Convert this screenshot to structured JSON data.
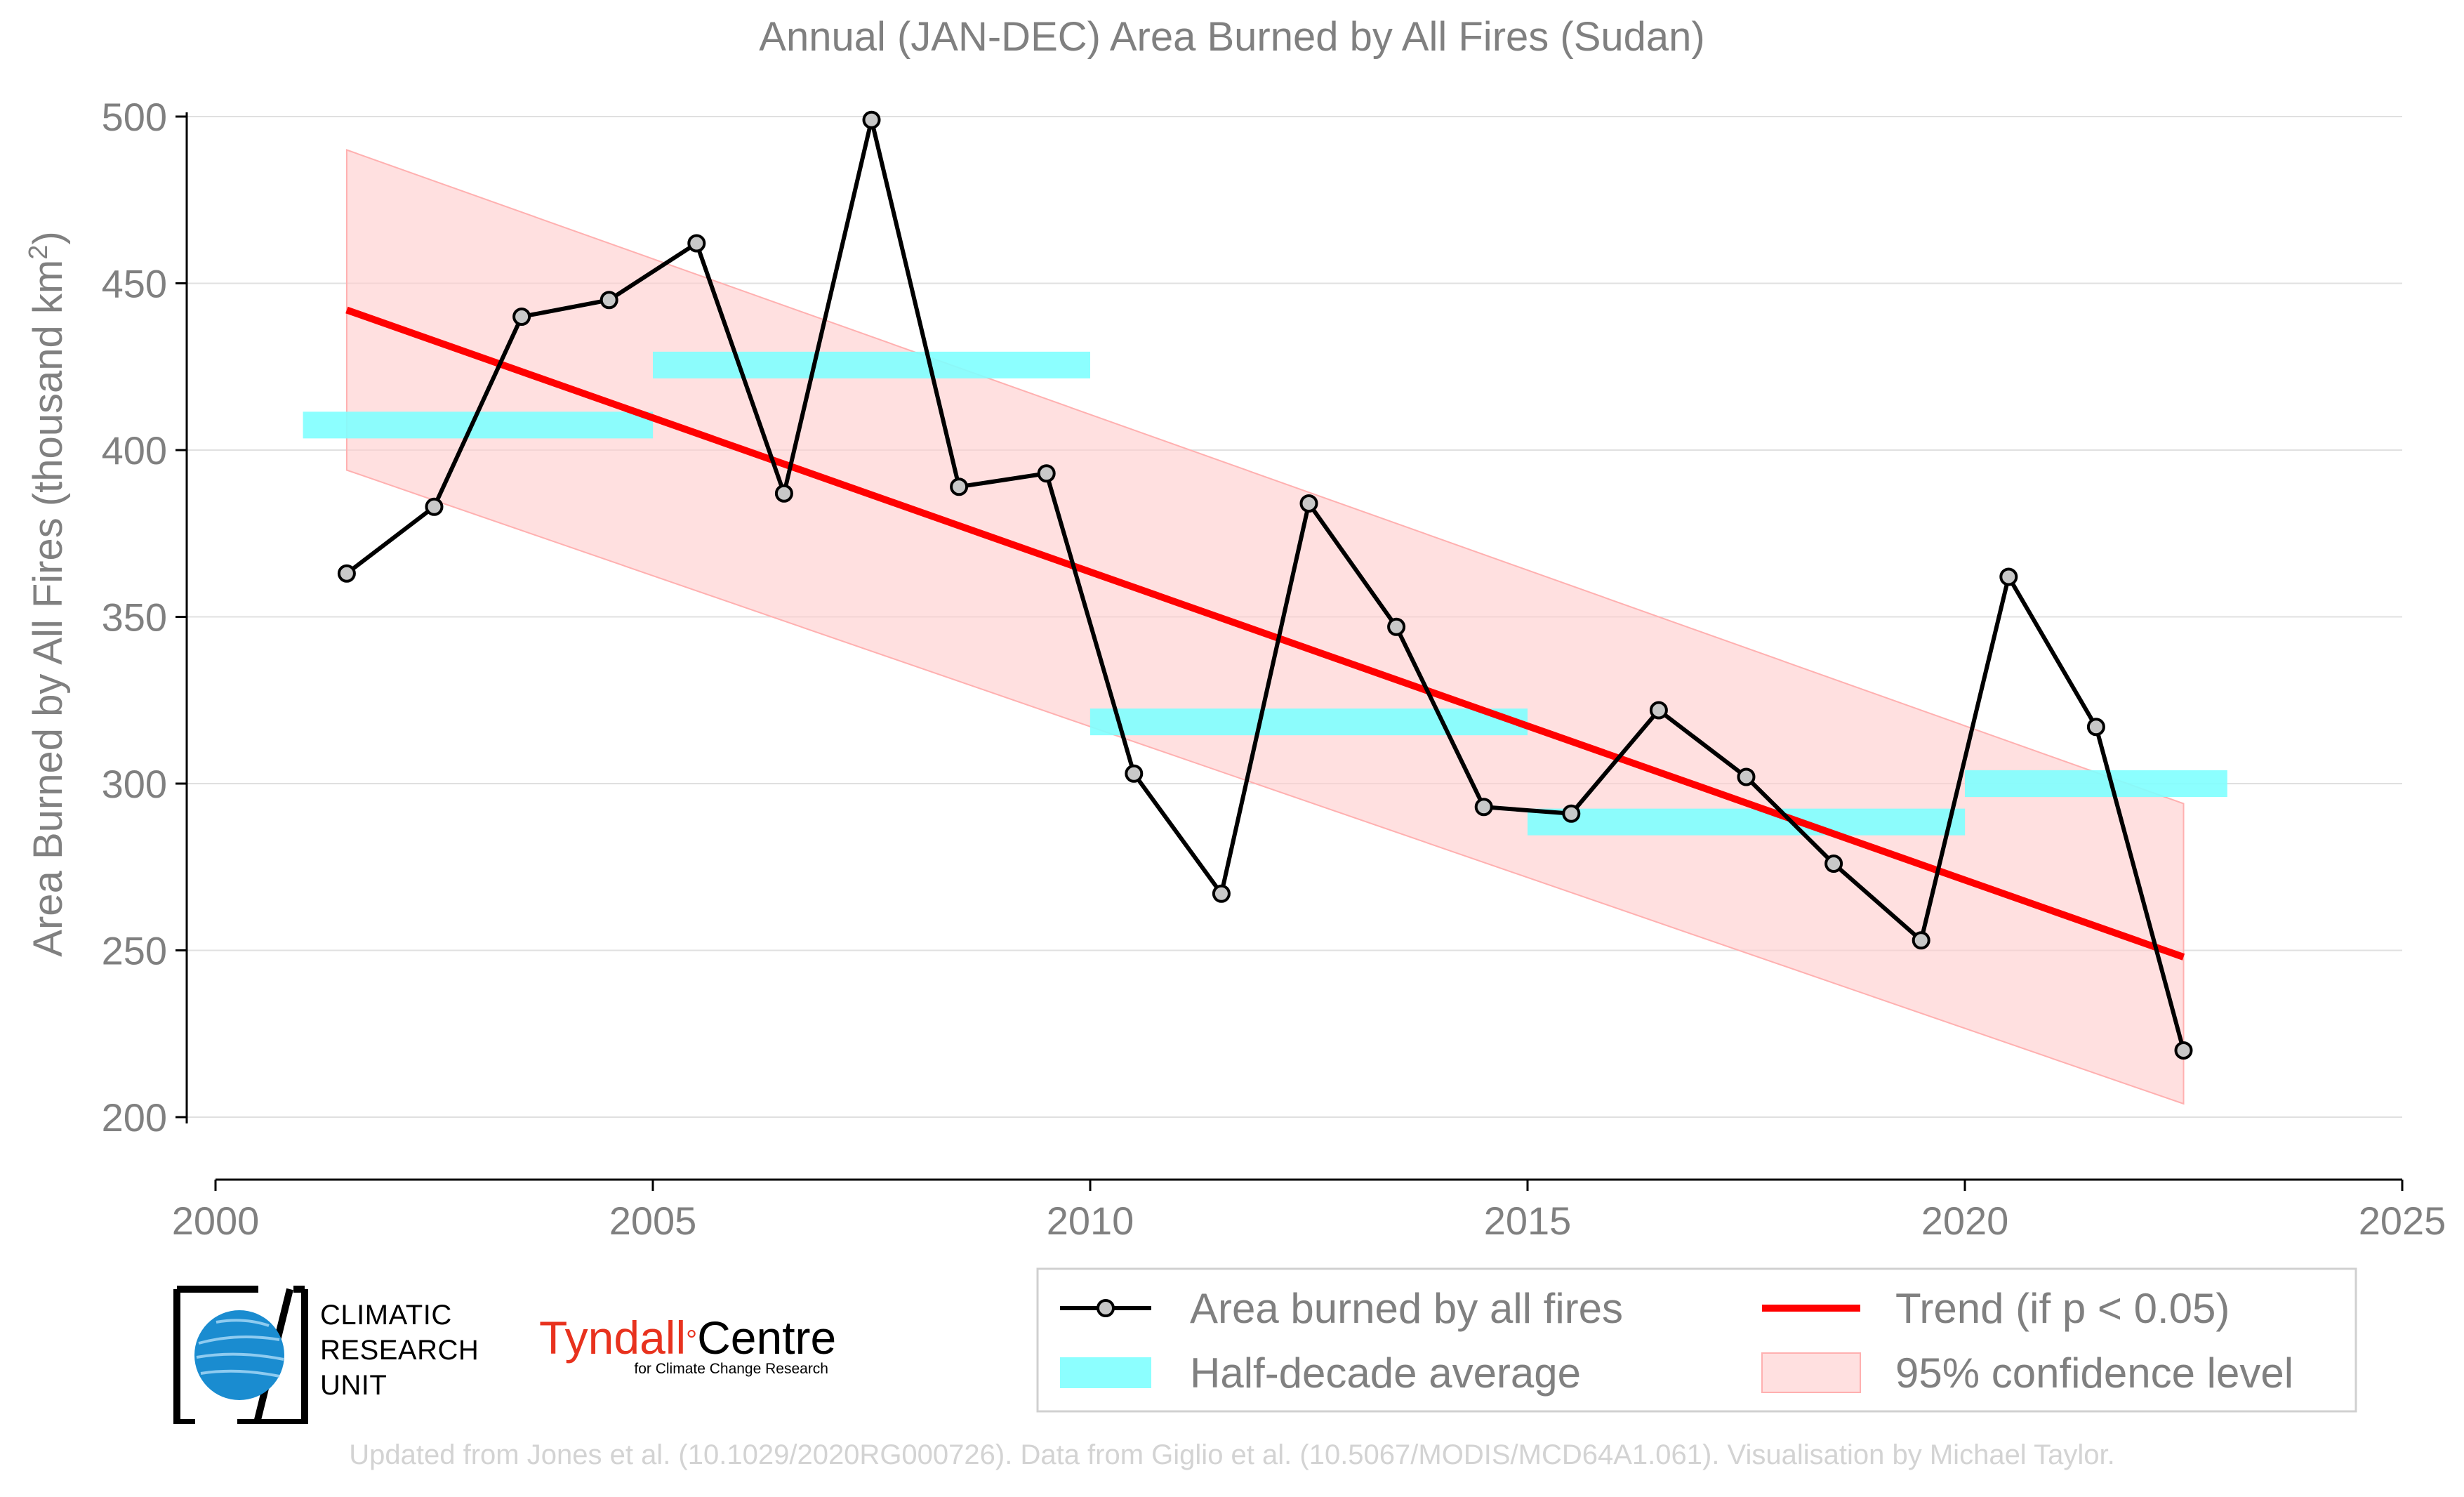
{
  "chart_data": {
    "type": "line",
    "title": "Annual (JAN-DEC) Area Burned by All Fires (Sudan)",
    "ylabel": "Area Burned by All Fires (thousand km",
    "ylabel_sup": "2",
    "ylabel_end": ")",
    "xlim": [
      2000,
      2025
    ],
    "ylim": [
      185,
      500
    ],
    "x_ticks": [
      2000,
      2005,
      2010,
      2015,
      2020,
      2025
    ],
    "y_ticks": [
      200,
      250,
      300,
      350,
      400,
      450,
      500
    ],
    "grid": true,
    "legend_position": "bottom-right",
    "colors": {
      "line": "#000000",
      "marker_fill": "#c8c8c8",
      "trend": "#ff0000",
      "half_decade": "#7fffff",
      "confidence": "#ffcccc",
      "grid": "#e0e0e0",
      "axis_text": "#808080"
    },
    "series": [
      {
        "name": "Area burned by all fires",
        "x": [
          2001.5,
          2002.5,
          2003.5,
          2004.5,
          2005.5,
          2006.5,
          2007.5,
          2008.5,
          2009.5,
          2010.5,
          2011.5,
          2012.5,
          2013.5,
          2014.5,
          2015.5,
          2016.5,
          2017.5,
          2018.5,
          2019.5,
          2020.5,
          2021.5,
          2022.5
        ],
        "values": [
          363,
          383,
          440,
          445,
          462,
          387,
          499,
          389,
          393,
          303,
          267,
          384,
          347,
          293,
          291,
          322,
          302,
          276,
          253,
          362,
          317,
          220
        ]
      }
    ],
    "half_decade_average": {
      "name": "Half-decade average",
      "segments": [
        {
          "x0": 2001,
          "x1": 2005,
          "value": 407.5
        },
        {
          "x0": 2005,
          "x1": 2010,
          "value": 425.5
        },
        {
          "x0": 2010,
          "x1": 2015,
          "value": 318.5
        },
        {
          "x0": 2015,
          "x1": 2020,
          "value": 288.5
        },
        {
          "x0": 2020,
          "x1": 2023,
          "value": 300
        }
      ]
    },
    "trend": {
      "name": "Trend (if p < 0.05)",
      "x0": 2001.5,
      "y0": 442,
      "x1": 2022.5,
      "y1": 248
    },
    "confidence": {
      "name": "95% confidence level",
      "x": [
        2001.5,
        2022.5
      ],
      "upper": [
        490,
        294
      ],
      "lower": [
        394,
        204
      ]
    },
    "legend": [
      {
        "label": "Area burned by all fires",
        "kind": "line-marker"
      },
      {
        "label": "Trend (if p < 0.05)",
        "kind": "trend"
      },
      {
        "label": "Half-decade average",
        "kind": "band"
      },
      {
        "label": "95% confidence level",
        "kind": "fill"
      }
    ]
  },
  "logos": {
    "cru_line1": "CLIMATIC",
    "cru_line2": "RESEARCH",
    "cru_line3": "UNIT",
    "tyndall_name": "Tyndall",
    "tyndall_degree": "°",
    "tyndall_centre": "Centre",
    "tyndall_sub": "for Climate Change Research"
  },
  "footer": "Updated from Jones et al. (10.1029/2020RG000726). Data from Giglio et al. (10.5067/MODIS/MCD64A1.061). Visualisation by Michael Taylor."
}
